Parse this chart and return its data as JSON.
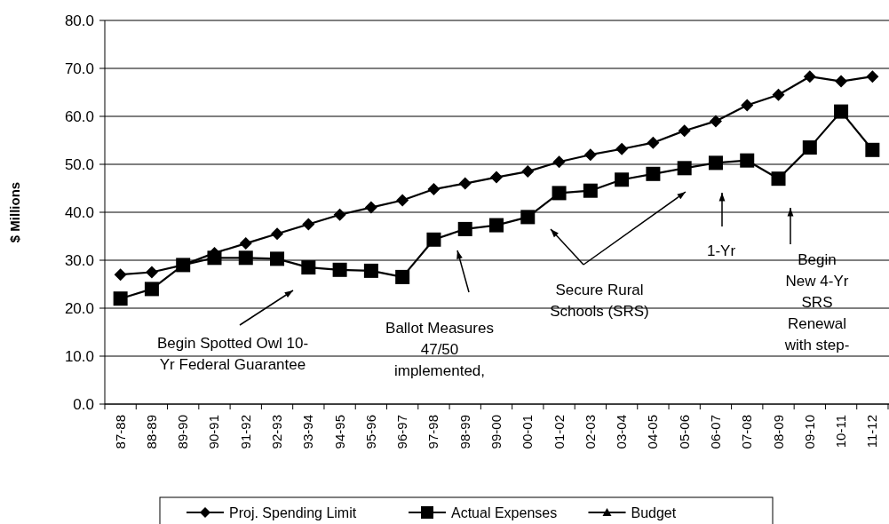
{
  "chart_data": {
    "type": "line",
    "ylabel": "$ Millions",
    "categories": [
      "87-88",
      "88-89",
      "89-90",
      "90-91",
      "91-92",
      "92-93",
      "93-94",
      "94-95",
      "95-96",
      "96-97",
      "97-98",
      "98-99",
      "99-00",
      "00-01",
      "01-02",
      "02-03",
      "03-04",
      "04-05",
      "05-06",
      "06-07",
      "07-08",
      "08-09",
      "09-10",
      "10-11",
      "11-12"
    ],
    "series": [
      {
        "name": "Proj. Spending Limit",
        "color": "#000000",
        "marker": "diamond",
        "values": [
          27,
          27.5,
          29,
          31.5,
          33.5,
          35.5,
          37.5,
          39.5,
          41,
          42.5,
          44.8,
          46,
          47.3,
          48.5,
          50.5,
          52,
          53.2,
          54.5,
          57,
          59,
          62.3,
          64.5,
          68.3,
          67.3,
          68.3
        ]
      },
      {
        "name": "Actual Expenses",
        "color": "#000000",
        "marker": "square",
        "values": [
          22,
          24,
          29,
          30.5,
          30.5,
          30.3,
          28.5,
          28,
          27.8,
          26.5,
          34.3,
          36.5,
          37.3,
          39,
          44,
          44.5,
          46.8,
          48,
          49.2,
          50.3,
          50.8,
          47,
          53.5,
          61,
          53
        ]
      },
      {
        "name": "Budget",
        "color": "#000000",
        "marker": "triangle",
        "values": [
          null,
          null,
          null,
          null,
          null,
          null,
          null,
          null,
          null,
          null,
          null,
          null,
          null,
          null,
          null,
          null,
          null,
          null,
          null,
          null,
          null,
          null,
          null,
          null,
          null
        ]
      }
    ],
    "ylim": [
      0,
      80
    ],
    "yticks": [
      {
        "value": 0,
        "label": "0.0"
      },
      {
        "value": 10,
        "label": "10.0"
      },
      {
        "value": 20,
        "label": "20.0"
      },
      {
        "value": 30,
        "label": "30.0"
      },
      {
        "value": 40,
        "label": "40.0"
      },
      {
        "value": 50,
        "label": "50.0"
      },
      {
        "value": 60,
        "label": "60.0"
      },
      {
        "value": 70,
        "label": "70.0"
      },
      {
        "value": 80,
        "label": "80.0"
      }
    ],
    "grid": "y",
    "legend": "bottom",
    "annotations": [
      "Begin Spotted Owl 10-\nYr Federal Guarantee",
      "Ballot Measures\n47/50\nimplemented,",
      "Secure Rural\nSchools (SRS)",
      "1-Yr",
      "Begin\nNew 4-Yr\nSRS\nRenewal\nwith step-"
    ]
  }
}
